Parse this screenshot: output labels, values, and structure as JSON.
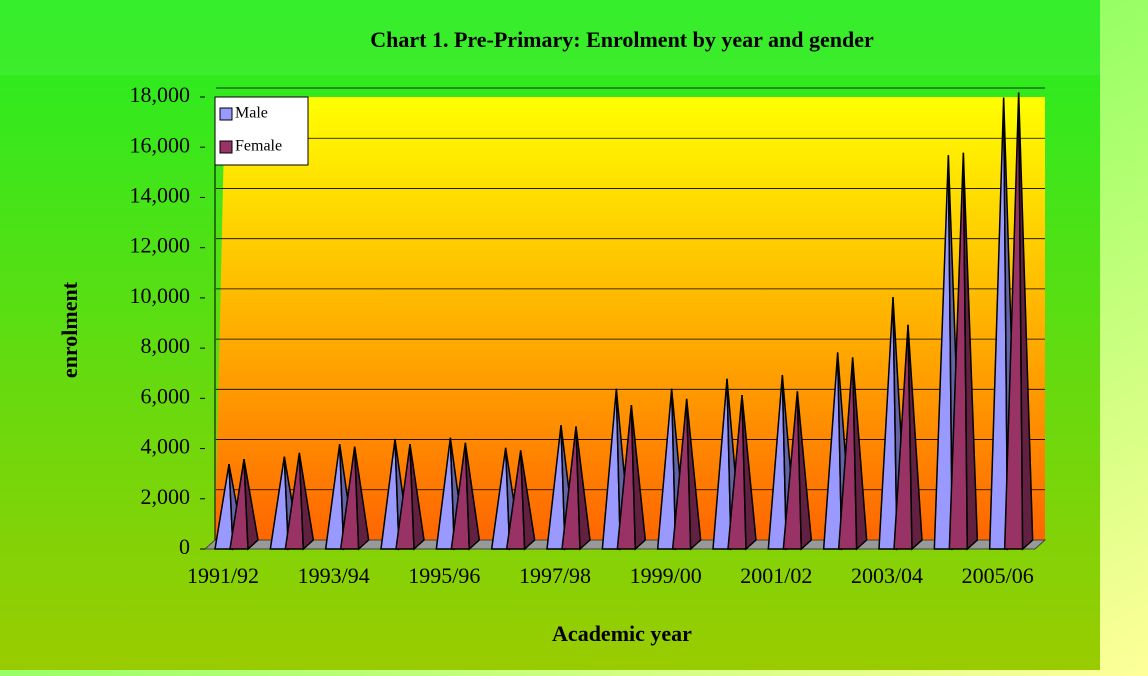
{
  "chart_data": {
    "type": "pyramid",
    "title": "Chart 1. Pre-Primary: Enrolment by year and gender",
    "x_label": "Academic year",
    "y_label": "enrolment",
    "categories": [
      "1991/92",
      null,
      "1993/94",
      null,
      "1995/96",
      null,
      "1997/98",
      null,
      "1999/00",
      null,
      "2001/02",
      null,
      "2003/04",
      null,
      "2005/06"
    ],
    "series": [
      {
        "name": "Male",
        "color": "#9999ff",
        "values": [
          3200,
          3500,
          4000,
          4200,
          4250,
          3850,
          4750,
          6200,
          6200,
          6600,
          6750,
          7650,
          9850,
          15500,
          17800
        ]
      },
      {
        "name": "Female",
        "color": "#993366",
        "values": [
          3400,
          3650,
          3900,
          4000,
          4050,
          3750,
          4700,
          5550,
          5800,
          5950,
          6100,
          7450,
          8750,
          15600,
          18000
        ]
      }
    ],
    "ylim": [
      0,
      18000
    ],
    "yticks": [
      0,
      {
        "value": 2000,
        "label": "2,000"
      },
      {
        "value": 4000,
        "label": "4,000"
      },
      {
        "value": 6000,
        "label": "6,000"
      },
      {
        "value": 8000,
        "label": "8,000"
      },
      {
        "value": 10000,
        "label": "10,000"
      },
      {
        "value": 12000,
        "label": "12,000"
      },
      {
        "value": 14000,
        "label": "14,000"
      },
      {
        "value": 16000,
        "label": "16,000"
      },
      {
        "value": 18000,
        "label": "18,000"
      }
    ],
    "grid": true,
    "legend": "top-left"
  }
}
